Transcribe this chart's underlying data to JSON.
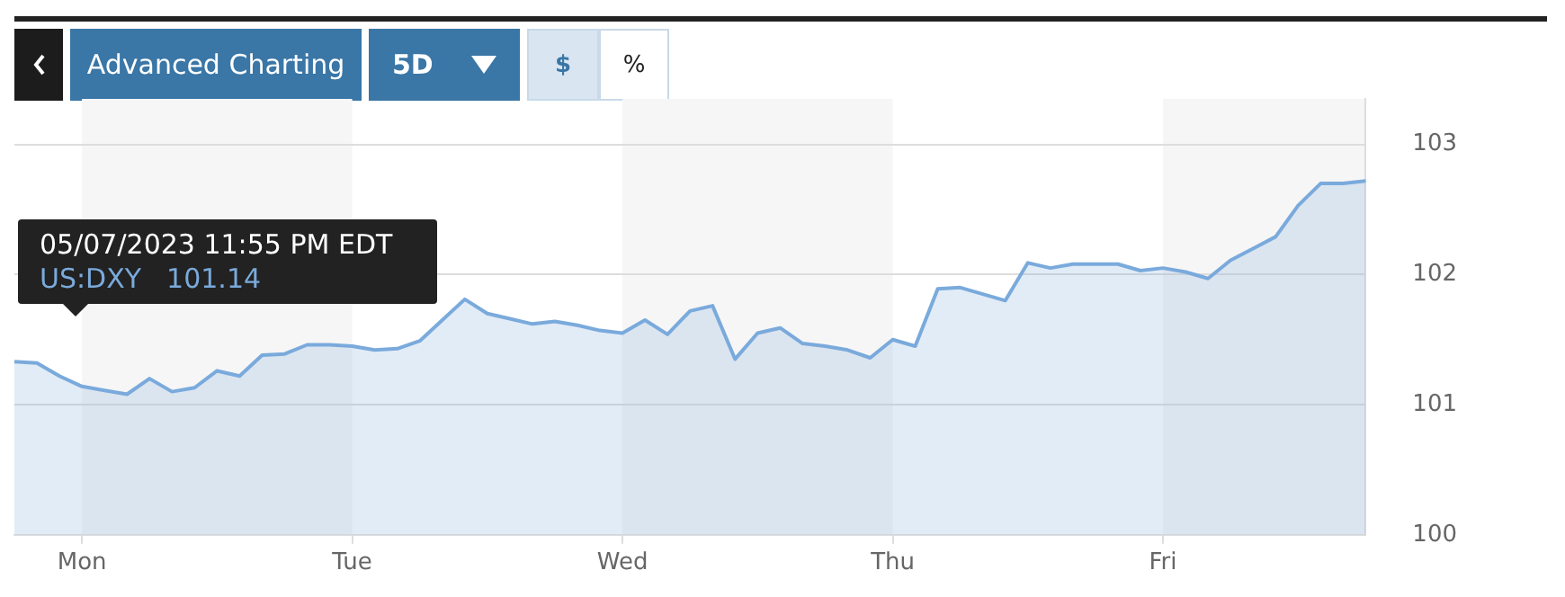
{
  "chart_data": {
    "type": "area",
    "categories": [
      null,
      null,
      null,
      "Mon",
      null,
      null,
      null,
      null,
      null,
      null,
      null,
      null,
      null,
      null,
      null,
      "Tue",
      null,
      null,
      null,
      null,
      null,
      null,
      null,
      null,
      null,
      null,
      null,
      "Wed",
      null,
      null,
      null,
      null,
      null,
      null,
      null,
      null,
      null,
      null,
      null,
      "Thu",
      null,
      null,
      null,
      null,
      null,
      null,
      null,
      null,
      null,
      null,
      null,
      "Fri",
      null,
      null,
      null,
      null,
      null,
      null,
      null,
      null,
      null
    ],
    "series": [
      {
        "color": "#7aaadc",
        "values": [
          101.33,
          101.32,
          101.22,
          101.14,
          101.11,
          101.08,
          101.2,
          101.1,
          101.13,
          101.26,
          101.22,
          101.38,
          101.39,
          101.46,
          101.46,
          101.45,
          101.42,
          101.43,
          101.49,
          101.65,
          101.81,
          101.7,
          101.66,
          101.62,
          101.64,
          101.61,
          101.57,
          101.55,
          101.65,
          101.54,
          101.72,
          101.76,
          101.35,
          101.55,
          101.59,
          101.47,
          101.45,
          101.42,
          101.36,
          101.5,
          101.45,
          101.89,
          101.9,
          101.85,
          101.8,
          102.09,
          102.05,
          102.08,
          102.08,
          102.08,
          102.03,
          102.05,
          102.02,
          101.97,
          102.11,
          102.2,
          102.29,
          102.53,
          102.7,
          102.7,
          102.72
        ]
      }
    ],
    "ylim": [
      100,
      103.35
    ],
    "yticks": [
      100,
      101,
      102,
      103
    ],
    "grid": "y",
    "annotations": [
      "Advanced Charting",
      "5D",
      "$",
      "%",
      "05/07/2023 11:55 PM EDT",
      "US:DXY",
      "101.14"
    ]
  }
}
